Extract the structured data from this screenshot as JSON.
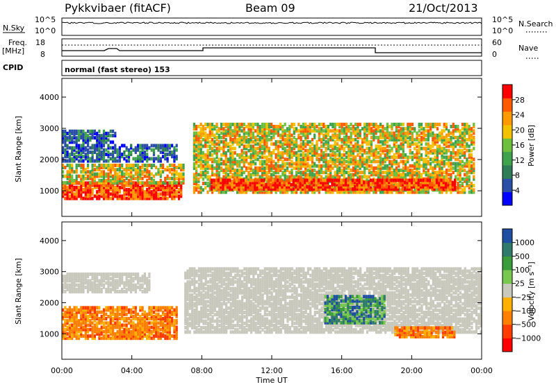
{
  "header": {
    "station": "Pykkvibaer (fitACF)",
    "beam": "Beam 09",
    "date": "21/Oct/2013"
  },
  "top_panels": {
    "nsky_label": "N.Sky",
    "nsky_ticks": [
      "10^5",
      "10^0"
    ],
    "nsearch_label": "N.Search",
    "nsearch_ticks": [
      "10^5",
      "10^0"
    ],
    "freq_label": "Freq.",
    "freq_unit": "[MHz]",
    "freq_ticks": [
      "18",
      "8"
    ],
    "nave_label": "Nave",
    "nave_ticks": [
      "60",
      "0"
    ],
    "cpid_label": "CPID",
    "cpid_value": "normal (fast stereo) 153"
  },
  "colors": {
    "power": [
      "#0000ff",
      "#2b4ea6",
      "#2e7d57",
      "#3fa34d",
      "#6fbf3f",
      "#f2c200",
      "#ff9900",
      "#ff5a00",
      "#ff0000"
    ],
    "velocity": [
      "#ff0000",
      "#ff3c00",
      "#ff8000",
      "#ffb000",
      "#c8c8bc",
      "#78c850",
      "#3a9c3a",
      "#2f7a6a",
      "#1f4fa0"
    ],
    "ground_scatter": "#c8c8bc"
  },
  "chart_data": [
    {
      "type": "heatmap",
      "name": "power-panel",
      "xlabel": "",
      "ylabel": "Slant Range [km]",
      "x_ticks": [
        "00:00",
        "04:00",
        "08:00",
        "12:00",
        "16:00",
        "20:00",
        "00:00"
      ],
      "y_ticks": [
        "1000",
        "2000",
        "3000",
        "4000"
      ],
      "xlim_hours": [
        0,
        24
      ],
      "ylim_km": [
        180,
        4600
      ],
      "colorbar": {
        "label": "Power [dB]",
        "ticks": [
          "28",
          "24",
          "20",
          "16",
          "12",
          "8",
          "4"
        ],
        "range": [
          0,
          30
        ]
      },
      "features": [
        {
          "start_h": 0.0,
          "end_h": 6.8,
          "range_km": [
            700,
            1200
          ],
          "level": "high"
        },
        {
          "start_h": 0.0,
          "end_h": 7.0,
          "range_km": [
            1200,
            1800
          ],
          "level": "medium"
        },
        {
          "start_h": 0.0,
          "end_h": 6.5,
          "range_km": [
            1900,
            2400
          ],
          "level": "low"
        },
        {
          "start_h": 0.0,
          "end_h": 3.0,
          "range_km": [
            2500,
            2900
          ],
          "level": "low"
        },
        {
          "start_h": 7.5,
          "end_h": 23.5,
          "range_km": [
            900,
            3100
          ],
          "level": "medium"
        },
        {
          "start_h": 8.5,
          "end_h": 22.5,
          "range_km": [
            1000,
            1300
          ],
          "level": "high"
        }
      ]
    },
    {
      "type": "heatmap",
      "name": "velocity-panel",
      "xlabel": "Time UT",
      "ylabel": "Slant Range [km]",
      "x_ticks": [
        "00:00",
        "04:00",
        "08:00",
        "12:00",
        "16:00",
        "20:00",
        "00:00"
      ],
      "y_ticks": [
        "1000",
        "2000",
        "3000",
        "4000"
      ],
      "xlim_hours": [
        0,
        24
      ],
      "ylim_km": [
        180,
        4600
      ],
      "colorbar": {
        "label": "Velocity [m s⁻¹]",
        "ticks": [
          "1000",
          "500",
          "100",
          "25",
          "−25",
          "−100",
          "−500",
          "−1000"
        ]
      },
      "features": [
        {
          "start_h": 0.0,
          "end_h": 6.5,
          "range_km": [
            800,
            1800
          ],
          "level": "negative"
        },
        {
          "start_h": 0.0,
          "end_h": 5.0,
          "range_km": [
            2300,
            2900
          ],
          "level": "ground"
        },
        {
          "start_h": 7.0,
          "end_h": 24.0,
          "range_km": [
            1000,
            3100
          ],
          "level": "ground"
        },
        {
          "start_h": 19.0,
          "end_h": 22.5,
          "range_km": [
            850,
            1200
          ],
          "level": "negative"
        },
        {
          "start_h": 15.0,
          "end_h": 18.5,
          "range_km": [
            1300,
            2200
          ],
          "level": "positive"
        }
      ]
    }
  ]
}
